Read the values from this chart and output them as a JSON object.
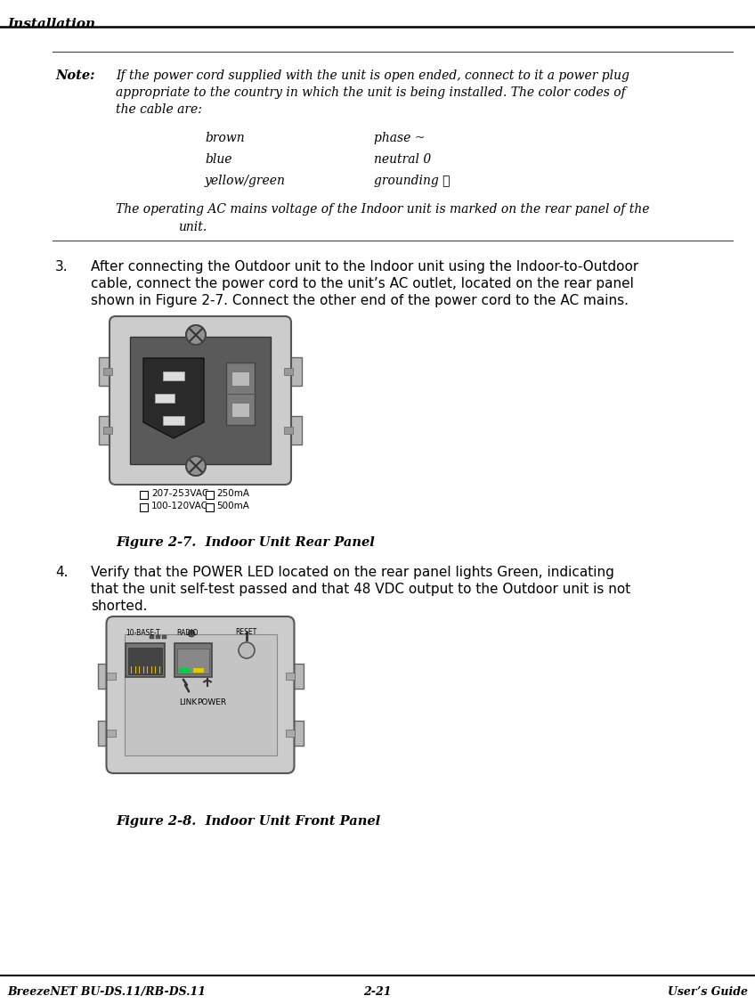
{
  "title_text": "Installation",
  "footer_left": "BreezeNET BU-DS.11/RB-DS.11",
  "footer_center": "2-21",
  "footer_right": "User’s Guide",
  "note_label": "Note:",
  "note_line1": "If the power cord supplied with the unit is open ended, connect to it a power plug",
  "note_line2": "appropriate to the country in which the unit is being installed. The color codes of",
  "note_line3": "the cable are:",
  "color_rows": [
    [
      "brown",
      "phase ~"
    ],
    [
      "blue",
      "neutral 0"
    ],
    [
      "yellow/green",
      "grounding ≣"
    ]
  ],
  "italic_line1": "The operating AC mains voltage of the Indoor unit is marked on the rear panel of the",
  "italic_line2": "unit.",
  "step3_num": "3.",
  "step3_line1": "After connecting the Outdoor unit to the Indoor unit using the Indoor-to-Outdoor",
  "step3_line2": "cable, connect the power cord to the unit’s AC outlet, located on the rear panel",
  "step3_line3": "shown in Figure 2-7. Connect the other end of the power cord to the AC mains.",
  "fig27_label1": "207-253VAC",
  "fig27_label2": "100-120VAC",
  "fig27_label3": "250mA",
  "fig27_label4": "500mA",
  "fig27_caption": "Figure 2-7.  Indoor Unit Rear Panel",
  "step4_num": "4.",
  "step4_line1": "Verify that the POWER LED located on the rear panel lights Green, indicating",
  "step4_line2": "that the unit self-test passed and that 48 VDC output to the Outdoor unit is not",
  "step4_line3": "shorted.",
  "fig28_label_10base": "10-BASE-T",
  "fig28_label_radio": "RADIO",
  "fig28_label_reset": "RESET",
  "fig28_label_link": "LINK",
  "fig28_label_power": "POWER",
  "fig28_caption": "Figure 2-8.  Indoor Unit Front Panel",
  "bg_color": "#ffffff",
  "text_color": "#000000",
  "title_line_color": "#000000",
  "rule_color": "#555555"
}
